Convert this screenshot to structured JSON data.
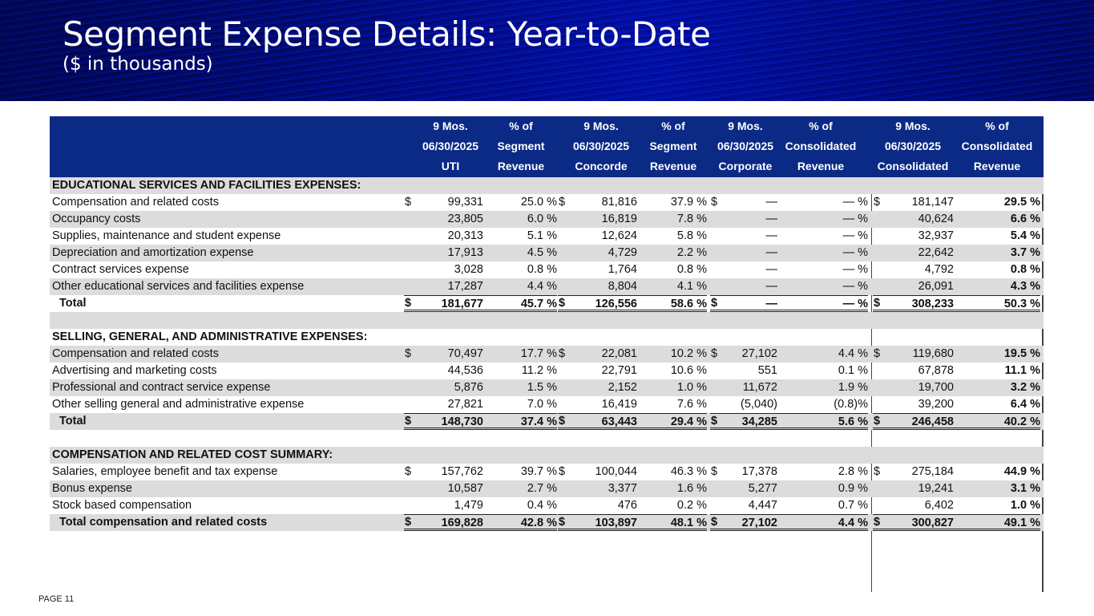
{
  "title": "Segment Expense Details: Year-to-Date",
  "subtitle": "($ in thousands)",
  "page": "PAGE 11",
  "header": [
    [
      "9 Mos.",
      "% of",
      "9 Mos.",
      "% of",
      "9 Mos.",
      "% of",
      "9 Mos.",
      "% of"
    ],
    [
      "06/30/2025",
      "Segment",
      "06/30/2025",
      "Segment",
      "06/30/2025",
      "Consolidated",
      "06/30/2025",
      "Consolidated"
    ],
    [
      "UTI",
      "Revenue",
      "Concorde",
      "Revenue",
      "Corporate",
      "Revenue",
      "Consolidated",
      "Revenue"
    ]
  ],
  "rows": [
    {
      "type": "sec",
      "label": "EDUCATIONAL SERVICES AND FACILITIES EXPENSES:"
    },
    {
      "type": "row",
      "label": "Compensation and related costs",
      "d": true,
      "v": [
        "99,331",
        "25.0 %",
        "81,816",
        "37.9 %",
        "—",
        "— %",
        "181,147",
        "29.5 %"
      ]
    },
    {
      "type": "row",
      "label": "Occupancy costs",
      "v": [
        "23,805",
        "6.0 %",
        "16,819",
        "7.8 %",
        "—",
        "— %",
        "40,624",
        "6.6 %"
      ]
    },
    {
      "type": "row",
      "label": "Supplies, maintenance and student expense",
      "v": [
        "20,313",
        "5.1 %",
        "12,624",
        "5.8 %",
        "—",
        "— %",
        "32,937",
        "5.4 %"
      ]
    },
    {
      "type": "row",
      "label": "Depreciation and amortization expense",
      "v": [
        "17,913",
        "4.5 %",
        "4,729",
        "2.2 %",
        "—",
        "— %",
        "22,642",
        "3.7 %"
      ]
    },
    {
      "type": "row",
      "label": "Contract services expense",
      "v": [
        "3,028",
        "0.8 %",
        "1,764",
        "0.8 %",
        "—",
        "— %",
        "4,792",
        "0.8 %"
      ]
    },
    {
      "type": "row",
      "label": "Other educational services and facilities expense",
      "v": [
        "17,287",
        "4.4 %",
        "8,804",
        "4.1 %",
        "—",
        "— %",
        "26,091",
        "4.3 %"
      ]
    },
    {
      "type": "total",
      "label": "Total",
      "d": true,
      "v": [
        "181,677",
        "45.7 %",
        "126,556",
        "58.6 %",
        "—",
        "— %",
        "308,233",
        "50.3 %"
      ]
    },
    {
      "type": "blank"
    },
    {
      "type": "sec",
      "label": "SELLING, GENERAL, AND ADMINISTRATIVE EXPENSES:"
    },
    {
      "type": "row",
      "label": "Compensation and related costs",
      "d": true,
      "v": [
        "70,497",
        "17.7 %",
        "22,081",
        "10.2 %",
        "27,102",
        "4.4 %",
        "119,680",
        "19.5 %"
      ]
    },
    {
      "type": "row",
      "label": "Advertising and marketing costs",
      "v": [
        "44,536",
        "11.2 %",
        "22,791",
        "10.6 %",
        "551",
        "0.1 %",
        "67,878",
        "11.1 %"
      ]
    },
    {
      "type": "row",
      "label": "Professional and contract service expense",
      "v": [
        "5,876",
        "1.5 %",
        "2,152",
        "1.0 %",
        "11,672",
        "1.9 %",
        "19,700",
        "3.2 %"
      ]
    },
    {
      "type": "row",
      "label": "Other selling general and administrative expense",
      "v": [
        "27,821",
        "7.0 %",
        "16,419",
        "7.6 %",
        "(5,040)",
        "(0.8)%",
        "39,200",
        "6.4 %"
      ]
    },
    {
      "type": "total",
      "label": "Total",
      "d": true,
      "v": [
        "148,730",
        "37.4 %",
        "63,443",
        "29.4 %",
        "34,285",
        "5.6 %",
        "246,458",
        "40.2 %"
      ]
    },
    {
      "type": "blank"
    },
    {
      "type": "sec",
      "label": "COMPENSATION AND RELATED COST SUMMARY:"
    },
    {
      "type": "row",
      "label": "Salaries, employee benefit and tax expense",
      "d": true,
      "v": [
        "157,762",
        "39.7 %",
        "100,044",
        "46.3 %",
        "17,378",
        "2.8 %",
        "275,184",
        "44.9 %"
      ]
    },
    {
      "type": "row",
      "label": "Bonus expense",
      "v": [
        "10,587",
        "2.7 %",
        "3,377",
        "1.6 %",
        "5,277",
        "0.9 %",
        "19,241",
        "3.1 %"
      ]
    },
    {
      "type": "row",
      "label": "Stock based compensation",
      "v": [
        "1,479",
        "0.4 %",
        "476",
        "0.2 %",
        "4,447",
        "0.7 %",
        "6,402",
        "1.0 %"
      ]
    },
    {
      "type": "total",
      "label": "Total compensation and related costs",
      "d": true,
      "v": [
        "169,828",
        "42.8 %",
        "103,897",
        "48.1 %",
        "27,102",
        "4.4 %",
        "300,827",
        "49.1 %"
      ]
    }
  ],
  "dollar": "$"
}
